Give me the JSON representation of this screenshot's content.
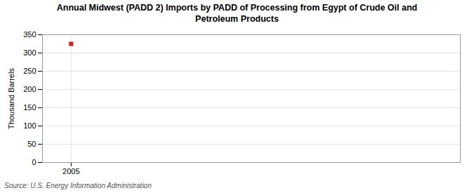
{
  "chart_data": {
    "type": "scatter",
    "title": "Annual Midwest (PADD 2) Imports by PADD of Processing from Egypt of Crude Oil and\nPetroleum Products",
    "ylabel": "Thousand Barrels",
    "source": "Source: U.S. Energy Information Administration",
    "x": [
      2005
    ],
    "values": [
      325
    ],
    "color": "#cc2222",
    "marker": "square",
    "xlim": [
      2004.3,
      2014.5
    ],
    "xticks": [
      2005
    ],
    "ylim": [
      0,
      350
    ],
    "yticks": [
      0,
      50,
      100,
      150,
      200,
      250,
      300,
      350
    ],
    "grid": true
  }
}
